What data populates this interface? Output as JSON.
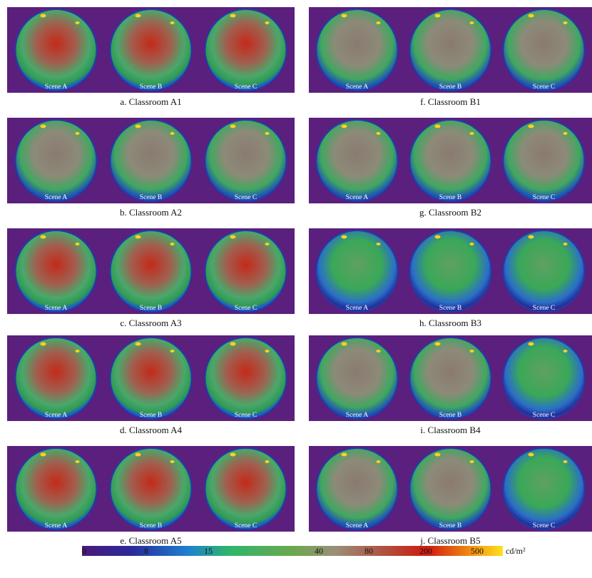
{
  "panels": [
    {
      "caption": "a. Classroom A1",
      "scenes": [
        "Scene A",
        "Scene B",
        "Scene C"
      ]
    },
    {
      "caption": "b. Classroom A2",
      "scenes": [
        "Scene A",
        "Scene B",
        "Scene C"
      ]
    },
    {
      "caption": "c. Classroom A3",
      "scenes": [
        "Scene A",
        "Scene B",
        "Scene C"
      ]
    },
    {
      "caption": "d. Classroom A4",
      "scenes": [
        "Scene A",
        "Scene B",
        "Scene C"
      ]
    },
    {
      "caption": "e. Classroom A5",
      "scenes": [
        "Scene A",
        "Scene B",
        "Scene C"
      ]
    },
    {
      "caption": "f. Classroom B1",
      "scenes": [
        "Scene A",
        "Scene B",
        "Scene C"
      ]
    },
    {
      "caption": "g. Classroom B2",
      "scenes": [
        "Scene A",
        "Scene B",
        "Scene C"
      ]
    },
    {
      "caption": "h. Classroom B3",
      "scenes": [
        "Scene A",
        "Scene B",
        "Scene C"
      ]
    },
    {
      "caption": "i. Classroom B4",
      "scenes": [
        "Scene A",
        "Scene B",
        "Scene C"
      ]
    },
    {
      "caption": "j. Classroom B5",
      "scenes": [
        "Scene A",
        "Scene B",
        "Scene C"
      ]
    }
  ],
  "colorbar": {
    "ticks": [
      0,
      8,
      15,
      40,
      80,
      200,
      500
    ],
    "unit": "cd/m²"
  }
}
